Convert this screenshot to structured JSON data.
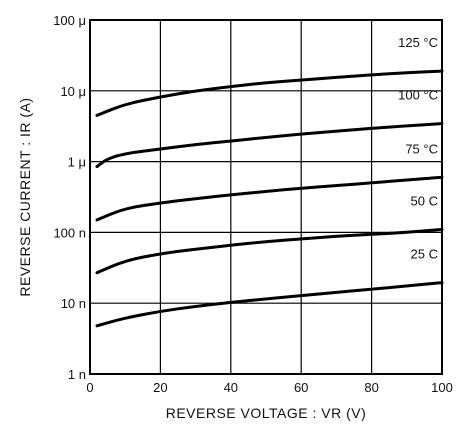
{
  "chart_data": {
    "type": "line",
    "title": "",
    "xlabel": "REVERSE VOLTAGE : VR (V)",
    "ylabel": "REVERSE CURRENT : IR (A)",
    "x_ticks": [
      {
        "value": 0,
        "label": "0"
      },
      {
        "value": 20,
        "label": "20"
      },
      {
        "value": 40,
        "label": "40"
      },
      {
        "value": 60,
        "label": "60"
      },
      {
        "value": 80,
        "label": "80"
      },
      {
        "value": 100,
        "label": "100"
      }
    ],
    "y_ticks": [
      {
        "value": 1e-09,
        "label": "1 n"
      },
      {
        "value": 1e-08,
        "label": "10 n"
      },
      {
        "value": 1e-07,
        "label": "100 n"
      },
      {
        "value": 1e-06,
        "label": "1 μ"
      },
      {
        "value": 1e-05,
        "label": "10 μ"
      },
      {
        "value": 0.0001,
        "label": "100 μ"
      }
    ],
    "xlim": [
      0,
      100
    ],
    "ylim": [
      1e-09,
      0.0001
    ],
    "yscale": "log",
    "grid": true,
    "line_color": "#000000",
    "series": [
      {
        "name": "125 °C",
        "x": [
          2,
          10,
          20,
          30,
          40,
          50,
          60,
          70,
          80,
          90,
          100
        ],
        "y": [
          4.5e-06,
          6.5e-06,
          8.2e-06,
          1e-05,
          1.15e-05,
          1.3e-05,
          1.42e-05,
          1.55e-05,
          1.68e-05,
          1.8e-05,
          1.9e-05
        ]
      },
      {
        "name": "100 °C",
        "x": [
          2,
          5,
          10,
          20,
          30,
          40,
          50,
          60,
          70,
          80,
          90,
          100
        ],
        "y": [
          8.5e-07,
          1.1e-06,
          1.3e-06,
          1.5e-06,
          1.75e-06,
          1.95e-06,
          2.2e-06,
          2.45e-06,
          2.7e-06,
          2.95e-06,
          3.2e-06,
          3.45e-06
        ]
      },
      {
        "name": "75 °C",
        "x": [
          2,
          10,
          20,
          30,
          40,
          50,
          60,
          70,
          80,
          90,
          100
        ],
        "y": [
          1.5e-07,
          2.2e-07,
          2.6e-07,
          3e-07,
          3.4e-07,
          3.8e-07,
          4.2e-07,
          4.6e-07,
          5e-07,
          5.5e-07,
          6e-07
        ]
      },
      {
        "name": "50 C",
        "x": [
          2,
          10,
          20,
          30,
          40,
          50,
          60,
          70,
          80,
          90,
          100
        ],
        "y": [
          2.7e-08,
          4e-08,
          5e-08,
          5.8e-08,
          6.6e-08,
          7.4e-08,
          8.1e-08,
          8.8e-08,
          9.4e-08,
          1e-07,
          1.1e-07
        ]
      },
      {
        "name": "25 C",
        "x": [
          2,
          10,
          20,
          30,
          40,
          50,
          60,
          70,
          80,
          90,
          100
        ],
        "y": [
          4.8e-09,
          6.2e-09,
          7.7e-09,
          9e-09,
          1.03e-08,
          1.15e-08,
          1.28e-08,
          1.42e-08,
          1.58e-08,
          1.75e-08,
          1.95e-08
        ]
      }
    ]
  }
}
